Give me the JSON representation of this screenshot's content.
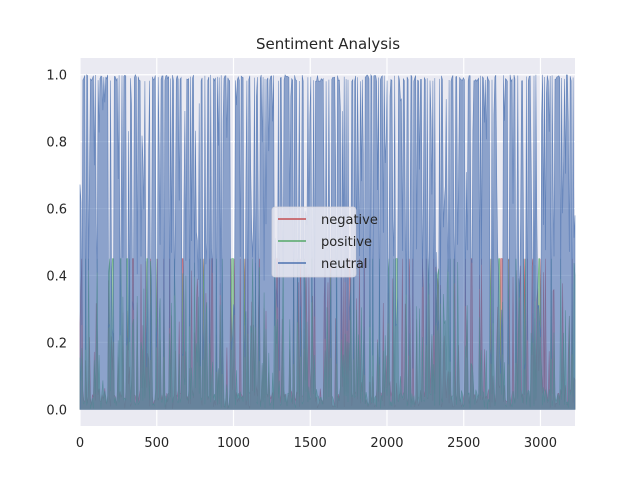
{
  "chart_data": {
    "type": "area",
    "title": "Sentiment Analysis",
    "xlabel": "",
    "ylabel": "",
    "xlim": [
      0,
      3225
    ],
    "ylim": [
      -0.05,
      1.05
    ],
    "x_ticks": [
      0,
      500,
      1000,
      1500,
      2000,
      2500,
      3000
    ],
    "y_ticks": [
      0.0,
      0.2,
      0.4,
      0.6,
      0.8,
      1.0
    ],
    "x_tick_labels": [
      "0",
      "500",
      "1000",
      "1500",
      "2000",
      "2500",
      "3000"
    ],
    "y_tick_labels": [
      "0.0",
      "0.2",
      "0.4",
      "0.6",
      "0.8",
      "1.0"
    ],
    "grid": true,
    "legend_position": "center",
    "n_points": 3225,
    "series": [
      {
        "name": "negative",
        "color": "#c44e52",
        "typical_range": [
          0.0,
          0.45
        ]
      },
      {
        "name": "positive",
        "color": "#55a868",
        "typical_range": [
          0.0,
          0.45
        ]
      },
      {
        "name": "neutral",
        "color": "#4c72b0",
        "typical_range": [
          0.0,
          1.0
        ]
      }
    ]
  }
}
